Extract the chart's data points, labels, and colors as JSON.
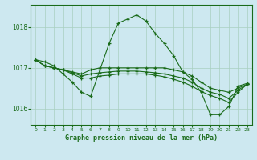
{
  "title": "Graphe pression niveau de la mer (hPa)",
  "bg_color": "#cde8f0",
  "grid_color": "#a8cfc0",
  "line_color": "#1a6b1a",
  "xlim": [
    -0.5,
    23.5
  ],
  "ylim": [
    1015.6,
    1018.55
  ],
  "yticks": [
    1016,
    1017,
    1018
  ],
  "xticks": [
    0,
    1,
    2,
    3,
    4,
    5,
    6,
    7,
    8,
    9,
    10,
    11,
    12,
    13,
    14,
    15,
    16,
    17,
    18,
    19,
    20,
    21,
    22,
    23
  ],
  "series": [
    [
      1017.2,
      1017.15,
      1017.05,
      1016.85,
      1016.65,
      1016.4,
      1016.3,
      1016.95,
      1017.6,
      1018.1,
      1018.2,
      1018.3,
      1018.15,
      1017.85,
      1017.6,
      1017.3,
      1016.9,
      1016.72,
      1016.4,
      1015.85,
      1015.85,
      1016.05,
      1016.55,
      1016.62
    ],
    [
      1017.2,
      1017.05,
      1017.0,
      1016.95,
      1016.9,
      1016.85,
      1016.95,
      1017.0,
      1017.0,
      1017.0,
      1017.0,
      1017.0,
      1017.0,
      1017.0,
      1017.0,
      1016.95,
      1016.9,
      1016.8,
      1016.65,
      1016.5,
      1016.45,
      1016.4,
      1016.5,
      1016.6
    ],
    [
      1017.2,
      1017.05,
      1017.0,
      1016.95,
      1016.88,
      1016.8,
      1016.85,
      1016.88,
      1016.9,
      1016.92,
      1016.92,
      1016.92,
      1016.9,
      1016.88,
      1016.85,
      1016.8,
      1016.75,
      1016.65,
      1016.5,
      1016.4,
      1016.35,
      1016.25,
      1016.45,
      1016.6
    ],
    [
      1017.2,
      1017.05,
      1017.0,
      1016.95,
      1016.85,
      1016.75,
      1016.75,
      1016.8,
      1016.82,
      1016.85,
      1016.85,
      1016.85,
      1016.85,
      1016.82,
      1016.78,
      1016.72,
      1016.65,
      1016.55,
      1016.42,
      1016.32,
      1016.25,
      1016.15,
      1016.4,
      1016.6
    ]
  ]
}
